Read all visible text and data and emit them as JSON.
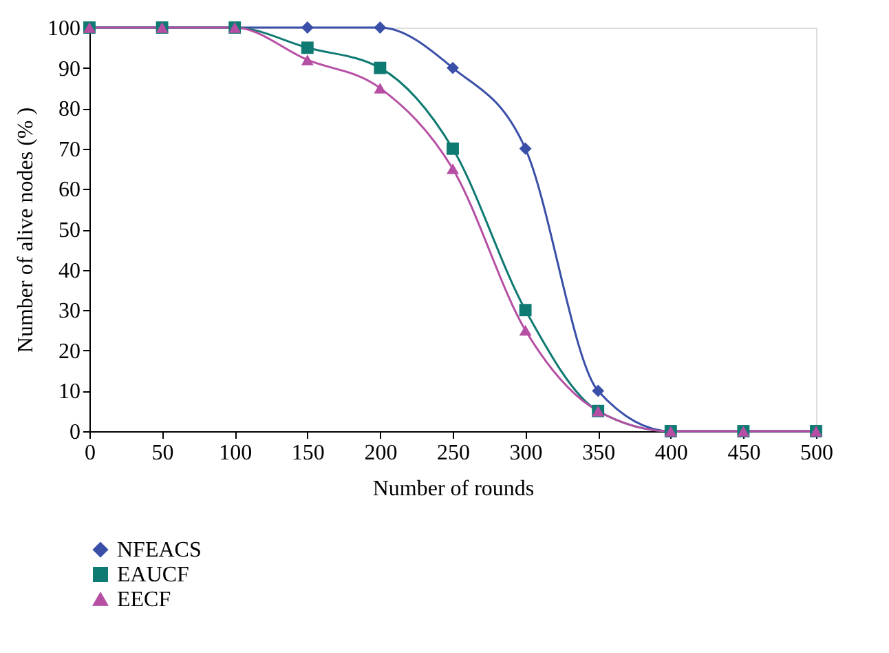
{
  "chart_data": {
    "type": "line",
    "xlabel": "Number of rounds",
    "ylabel": "Number of alive nodes (% )",
    "x": [
      0,
      50,
      100,
      150,
      200,
      250,
      300,
      350,
      400,
      450,
      500
    ],
    "xlim": [
      0,
      500
    ],
    "xticks": [
      0,
      50,
      100,
      150,
      200,
      250,
      300,
      350,
      400,
      450,
      500
    ],
    "ylim": [
      0,
      100
    ],
    "yticks": [
      0,
      10,
      20,
      30,
      40,
      50,
      60,
      70,
      80,
      90,
      100
    ],
    "grid": false,
    "legend": "bottom left",
    "line_style": "solid",
    "series": [
      {
        "name": "NFEACS",
        "color": "#3a4fa8",
        "marker": "diamond",
        "values": [
          100,
          100,
          100,
          100,
          100,
          90,
          70,
          10,
          0,
          0,
          0
        ]
      },
      {
        "name": "EAUCF",
        "color": "#0f7a72",
        "marker": "square",
        "values": [
          100,
          100,
          100,
          95,
          90,
          70,
          30,
          5,
          0,
          0,
          0
        ]
      },
      {
        "name": "EECF",
        "color": "#b64fa4",
        "marker": "triangle",
        "values": [
          100,
          100,
          100,
          92,
          85,
          65,
          25,
          5,
          0,
          0,
          0
        ]
      }
    ]
  }
}
